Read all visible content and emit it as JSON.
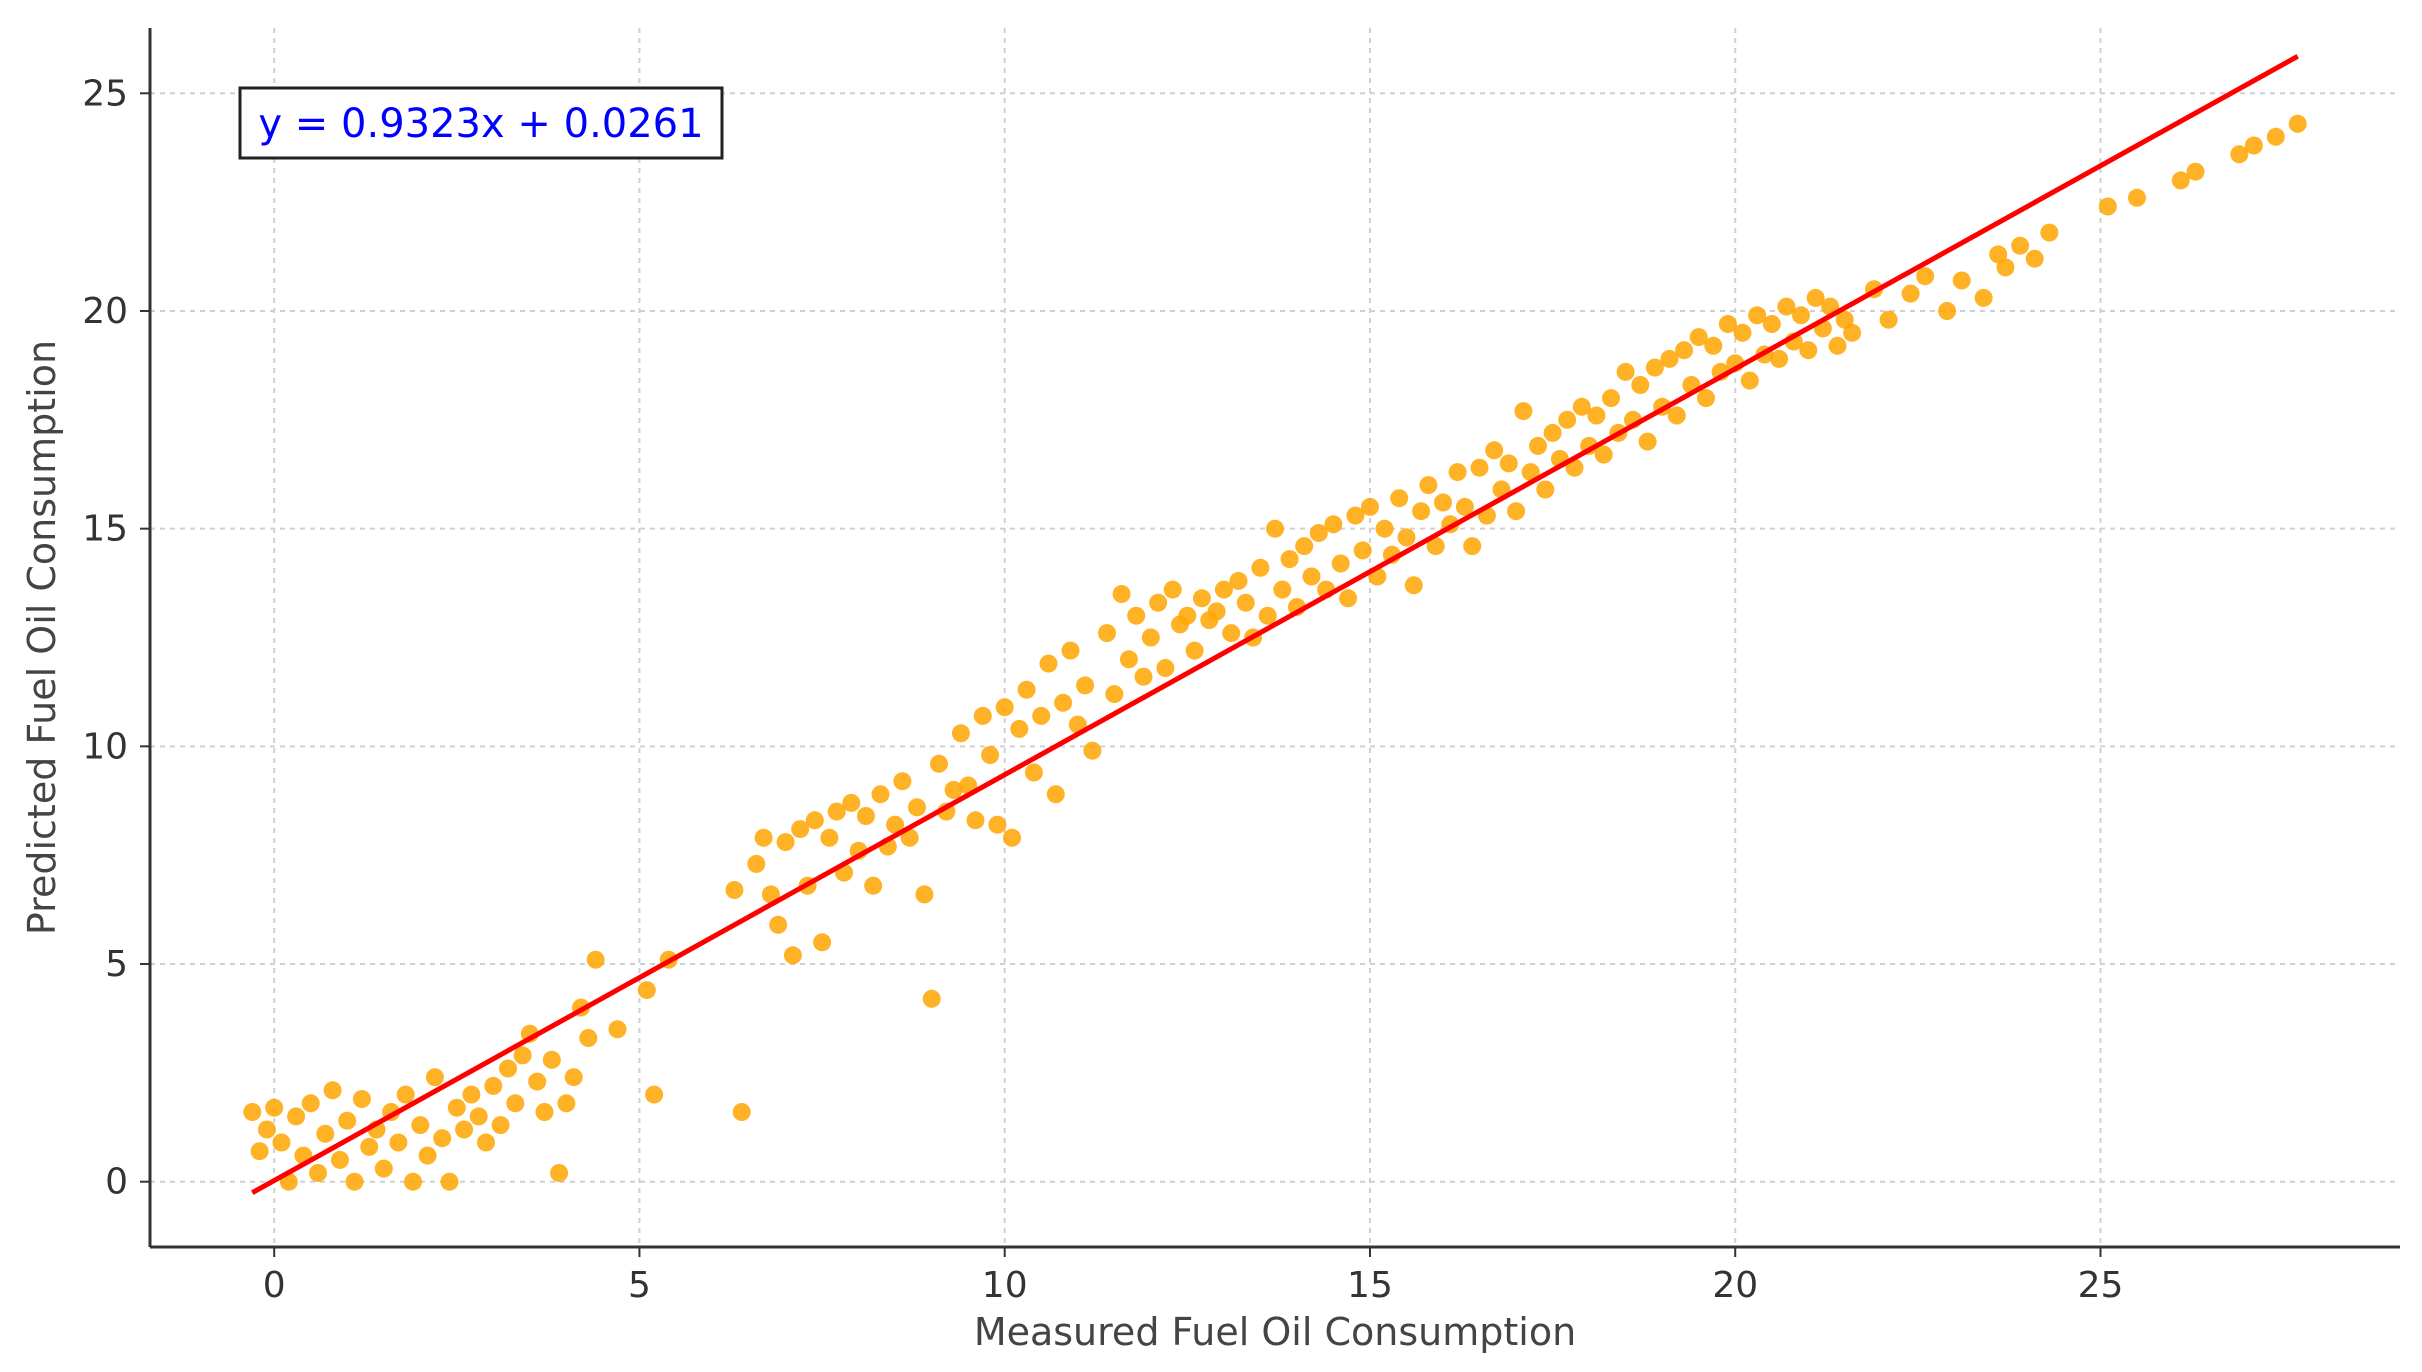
{
  "chart_data": {
    "type": "scatter",
    "title": "",
    "xlabel": "Measured Fuel Oil Consumption",
    "ylabel": "Predicted Fuel Oil Consumption",
    "xlim": [
      -1.7,
      29.1
    ],
    "ylim": [
      -1.5,
      26.5
    ],
    "xticks": [
      0,
      5,
      10,
      15,
      20,
      25
    ],
    "yticks": [
      0,
      5,
      10,
      15,
      20,
      25
    ],
    "grid": true,
    "colors": {
      "points": "#ffa500",
      "fit_line": "#ff0000",
      "annotation_text": "#0000ff",
      "grid": "#d0d0d0",
      "axis": "#333333"
    },
    "fit_line": {
      "label": "y = 0.9323x + 0.0261",
      "slope": 0.9323,
      "intercept": 0.0261,
      "x_range": [
        -0.3,
        27.7
      ],
      "annotation_position": "top-left"
    },
    "series": [
      {
        "points": [
          [
            -0.3,
            1.6
          ],
          [
            -0.2,
            0.7
          ],
          [
            -0.1,
            1.2
          ],
          [
            0.0,
            1.7
          ],
          [
            0.1,
            0.9
          ],
          [
            0.2,
            0.0
          ],
          [
            0.3,
            1.5
          ],
          [
            0.4,
            0.6
          ],
          [
            0.5,
            1.8
          ],
          [
            0.6,
            0.2
          ],
          [
            0.7,
            1.1
          ],
          [
            0.8,
            2.1
          ],
          [
            0.9,
            0.5
          ],
          [
            1.0,
            1.4
          ],
          [
            1.1,
            0.0
          ],
          [
            1.2,
            1.9
          ],
          [
            1.3,
            0.8
          ],
          [
            1.4,
            1.2
          ],
          [
            1.5,
            0.3
          ],
          [
            1.6,
            1.6
          ],
          [
            1.7,
            0.9
          ],
          [
            1.8,
            2.0
          ],
          [
            1.9,
            0.0
          ],
          [
            2.0,
            1.3
          ],
          [
            2.1,
            0.6
          ],
          [
            2.2,
            2.4
          ],
          [
            2.3,
            1.0
          ],
          [
            2.4,
            0.0
          ],
          [
            2.5,
            1.7
          ],
          [
            2.6,
            1.2
          ],
          [
            2.7,
            2.0
          ],
          [
            2.8,
            1.5
          ],
          [
            2.9,
            0.9
          ],
          [
            3.0,
            2.2
          ],
          [
            3.1,
            1.3
          ],
          [
            3.2,
            2.6
          ],
          [
            3.3,
            1.8
          ],
          [
            3.4,
            2.9
          ],
          [
            3.5,
            3.4
          ],
          [
            3.6,
            2.3
          ],
          [
            3.7,
            1.6
          ],
          [
            3.8,
            2.8
          ],
          [
            3.9,
            0.2
          ],
          [
            4.0,
            1.8
          ],
          [
            4.1,
            2.4
          ],
          [
            4.2,
            4.0
          ],
          [
            4.3,
            3.3
          ],
          [
            4.4,
            5.1
          ],
          [
            4.7,
            3.5
          ],
          [
            5.1,
            4.4
          ],
          [
            5.2,
            2.0
          ],
          [
            5.4,
            5.1
          ],
          [
            6.3,
            6.7
          ],
          [
            6.4,
            1.6
          ],
          [
            6.6,
            7.3
          ],
          [
            6.7,
            7.9
          ],
          [
            6.8,
            6.6
          ],
          [
            6.9,
            5.9
          ],
          [
            7.0,
            7.8
          ],
          [
            7.1,
            5.2
          ],
          [
            7.2,
            8.1
          ],
          [
            7.3,
            6.8
          ],
          [
            7.4,
            8.3
          ],
          [
            7.5,
            5.5
          ],
          [
            7.6,
            7.9
          ],
          [
            7.7,
            8.5
          ],
          [
            7.8,
            7.1
          ],
          [
            7.9,
            8.7
          ],
          [
            8.0,
            7.6
          ],
          [
            8.1,
            8.4
          ],
          [
            8.2,
            6.8
          ],
          [
            8.3,
            8.9
          ],
          [
            8.4,
            7.7
          ],
          [
            8.5,
            8.2
          ],
          [
            8.6,
            9.2
          ],
          [
            8.7,
            7.9
          ],
          [
            8.8,
            8.6
          ],
          [
            8.9,
            6.6
          ],
          [
            9.0,
            4.2
          ],
          [
            9.1,
            9.6
          ],
          [
            9.2,
            8.5
          ],
          [
            9.3,
            9.0
          ],
          [
            9.4,
            10.3
          ],
          [
            9.5,
            9.1
          ],
          [
            9.6,
            8.3
          ],
          [
            9.7,
            10.7
          ],
          [
            9.8,
            9.8
          ],
          [
            9.9,
            8.2
          ],
          [
            10.0,
            10.9
          ],
          [
            10.1,
            7.9
          ],
          [
            10.2,
            10.4
          ],
          [
            10.3,
            11.3
          ],
          [
            10.4,
            9.4
          ],
          [
            10.5,
            10.7
          ],
          [
            10.6,
            11.9
          ],
          [
            10.7,
            8.9
          ],
          [
            10.8,
            11.0
          ],
          [
            10.9,
            12.2
          ],
          [
            11.0,
            10.5
          ],
          [
            11.1,
            11.4
          ],
          [
            11.2,
            9.9
          ],
          [
            11.4,
            12.6
          ],
          [
            11.5,
            11.2
          ],
          [
            11.6,
            13.5
          ],
          [
            11.7,
            12.0
          ],
          [
            11.8,
            13.0
          ],
          [
            11.9,
            11.6
          ],
          [
            12.0,
            12.5
          ],
          [
            12.1,
            13.3
          ],
          [
            12.2,
            11.8
          ],
          [
            12.3,
            13.6
          ],
          [
            12.4,
            12.8
          ],
          [
            12.5,
            13.0
          ],
          [
            12.6,
            12.2
          ],
          [
            12.7,
            13.4
          ],
          [
            12.8,
            12.9
          ],
          [
            12.9,
            13.1
          ],
          [
            13.0,
            13.6
          ],
          [
            13.1,
            12.6
          ],
          [
            13.2,
            13.8
          ],
          [
            13.3,
            13.3
          ],
          [
            13.4,
            12.5
          ],
          [
            13.5,
            14.1
          ],
          [
            13.6,
            13.0
          ],
          [
            13.7,
            15.0
          ],
          [
            13.8,
            13.6
          ],
          [
            13.9,
            14.3
          ],
          [
            14.0,
            13.2
          ],
          [
            14.1,
            14.6
          ],
          [
            14.2,
            13.9
          ],
          [
            14.3,
            14.9
          ],
          [
            14.4,
            13.6
          ],
          [
            14.5,
            15.1
          ],
          [
            14.6,
            14.2
          ],
          [
            14.7,
            13.4
          ],
          [
            14.8,
            15.3
          ],
          [
            14.9,
            14.5
          ],
          [
            15.0,
            15.5
          ],
          [
            15.1,
            13.9
          ],
          [
            15.2,
            15.0
          ],
          [
            15.3,
            14.4
          ],
          [
            15.4,
            15.7
          ],
          [
            15.5,
            14.8
          ],
          [
            15.6,
            13.7
          ],
          [
            15.7,
            15.4
          ],
          [
            15.8,
            16.0
          ],
          [
            15.9,
            14.6
          ],
          [
            16.0,
            15.6
          ],
          [
            16.1,
            15.1
          ],
          [
            16.2,
            16.3
          ],
          [
            16.3,
            15.5
          ],
          [
            16.4,
            14.6
          ],
          [
            16.5,
            16.4
          ],
          [
            16.6,
            15.3
          ],
          [
            16.7,
            16.8
          ],
          [
            16.8,
            15.9
          ],
          [
            16.9,
            16.5
          ],
          [
            17.0,
            15.4
          ],
          [
            17.1,
            17.7
          ],
          [
            17.2,
            16.3
          ],
          [
            17.3,
            16.9
          ],
          [
            17.4,
            15.9
          ],
          [
            17.5,
            17.2
          ],
          [
            17.6,
            16.6
          ],
          [
            17.7,
            17.5
          ],
          [
            17.8,
            16.4
          ],
          [
            17.9,
            17.8
          ],
          [
            18.0,
            16.9
          ],
          [
            18.1,
            17.6
          ],
          [
            18.2,
            16.7
          ],
          [
            18.3,
            18.0
          ],
          [
            18.4,
            17.2
          ],
          [
            18.5,
            18.6
          ],
          [
            18.6,
            17.5
          ],
          [
            18.7,
            18.3
          ],
          [
            18.8,
            17.0
          ],
          [
            18.9,
            18.7
          ],
          [
            19.0,
            17.8
          ],
          [
            19.1,
            18.9
          ],
          [
            19.2,
            17.6
          ],
          [
            19.3,
            19.1
          ],
          [
            19.4,
            18.3
          ],
          [
            19.5,
            19.4
          ],
          [
            19.6,
            18.0
          ],
          [
            19.7,
            19.2
          ],
          [
            19.8,
            18.6
          ],
          [
            19.9,
            19.7
          ],
          [
            20.0,
            18.8
          ],
          [
            20.1,
            19.5
          ],
          [
            20.2,
            18.4
          ],
          [
            20.3,
            19.9
          ],
          [
            20.4,
            19.0
          ],
          [
            20.5,
            19.7
          ],
          [
            20.6,
            18.9
          ],
          [
            20.7,
            20.1
          ],
          [
            20.8,
            19.3
          ],
          [
            20.9,
            19.9
          ],
          [
            21.0,
            19.1
          ],
          [
            21.1,
            20.3
          ],
          [
            21.2,
            19.6
          ],
          [
            21.3,
            20.1
          ],
          [
            21.4,
            19.2
          ],
          [
            21.5,
            19.8
          ],
          [
            21.6,
            19.5
          ],
          [
            21.9,
            20.5
          ],
          [
            22.1,
            19.8
          ],
          [
            22.4,
            20.4
          ],
          [
            22.6,
            20.8
          ],
          [
            22.9,
            20.0
          ],
          [
            23.1,
            20.7
          ],
          [
            23.4,
            20.3
          ],
          [
            23.6,
            21.3
          ],
          [
            23.7,
            21.0
          ],
          [
            23.9,
            21.5
          ],
          [
            24.1,
            21.2
          ],
          [
            24.3,
            21.8
          ],
          [
            25.1,
            22.4
          ],
          [
            25.5,
            22.6
          ],
          [
            26.1,
            23.0
          ],
          [
            26.3,
            23.2
          ],
          [
            26.9,
            23.6
          ],
          [
            27.1,
            23.8
          ],
          [
            27.4,
            24.0
          ],
          [
            27.7,
            24.3
          ]
        ]
      }
    ]
  }
}
